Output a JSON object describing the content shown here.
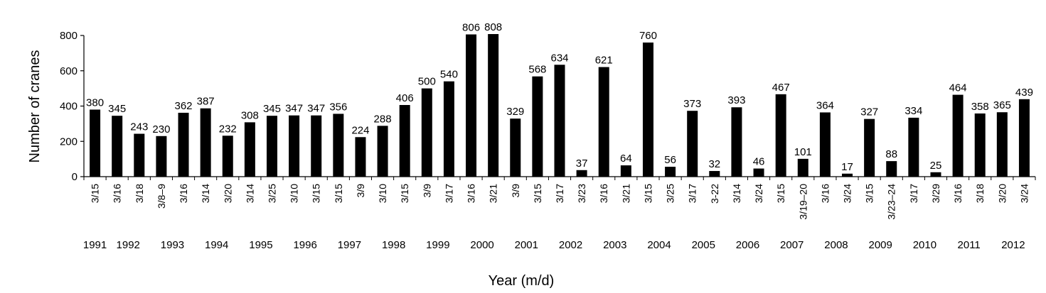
{
  "chart_data": {
    "type": "bar",
    "title": "",
    "xlabel": "Year (m/d)",
    "ylabel": "Number of cranes",
    "ylim": [
      0,
      800
    ],
    "yticks": [
      0,
      200,
      400,
      600,
      800
    ],
    "grid": false,
    "legend": "none",
    "bar_color": "#000000",
    "categories": [
      "3/15",
      "3/16",
      "3/18",
      "3/8–9",
      "3/16",
      "3/14",
      "3/20",
      "3/14",
      "3/25",
      "3/10",
      "3/15",
      "3/15",
      "3/9",
      "3/10",
      "3/15",
      "3/9",
      "3/17",
      "3/16",
      "3/21",
      "3/9",
      "3/15",
      "3/17",
      "3/23",
      "3/16",
      "3/21",
      "3/15",
      "3/25",
      "3/17",
      "3-22",
      "3/14",
      "3/24",
      "3/15",
      "3/19–20",
      "3/16",
      "3/24",
      "3/15",
      "3/23–24",
      "3/17",
      "3/29",
      "3/16",
      "3/18",
      "3/20",
      "3/24"
    ],
    "values": [
      380,
      345,
      243,
      230,
      362,
      387,
      232,
      308,
      345,
      347,
      347,
      356,
      224,
      288,
      406,
      500,
      540,
      806,
      808,
      329,
      568,
      634,
      37,
      621,
      64,
      760,
      56,
      373,
      32,
      393,
      46,
      467,
      101,
      364,
      17,
      327,
      88,
      334,
      25,
      464,
      358,
      365,
      439
    ],
    "years": [
      {
        "label": "1991",
        "bars": [
          0
        ]
      },
      {
        "label": "1992",
        "bars": [
          1,
          2
        ]
      },
      {
        "label": "1993",
        "bars": [
          3,
          4
        ]
      },
      {
        "label": "1994",
        "bars": [
          5,
          6
        ]
      },
      {
        "label": "1995",
        "bars": [
          7,
          8
        ]
      },
      {
        "label": "1996",
        "bars": [
          9,
          10
        ]
      },
      {
        "label": "1997",
        "bars": [
          11,
          12
        ]
      },
      {
        "label": "1998",
        "bars": [
          13,
          14
        ]
      },
      {
        "label": "1999",
        "bars": [
          15,
          16
        ]
      },
      {
        "label": "2000",
        "bars": [
          17,
          18
        ]
      },
      {
        "label": "2001",
        "bars": [
          19,
          20
        ]
      },
      {
        "label": "2002",
        "bars": [
          21,
          22
        ]
      },
      {
        "label": "2003",
        "bars": [
          23,
          24
        ]
      },
      {
        "label": "2004",
        "bars": [
          25,
          26
        ]
      },
      {
        "label": "2005",
        "bars": [
          27,
          28
        ]
      },
      {
        "label": "2006",
        "bars": [
          29,
          30
        ]
      },
      {
        "label": "2007",
        "bars": [
          31,
          32
        ]
      },
      {
        "label": "2008",
        "bars": [
          33,
          34
        ]
      },
      {
        "label": "2009",
        "bars": [
          35,
          36
        ]
      },
      {
        "label": "2010",
        "bars": [
          37,
          38
        ]
      },
      {
        "label": "2011",
        "bars": [
          39,
          40
        ]
      },
      {
        "label": "2012",
        "bars": [
          41,
          42
        ]
      }
    ]
  }
}
